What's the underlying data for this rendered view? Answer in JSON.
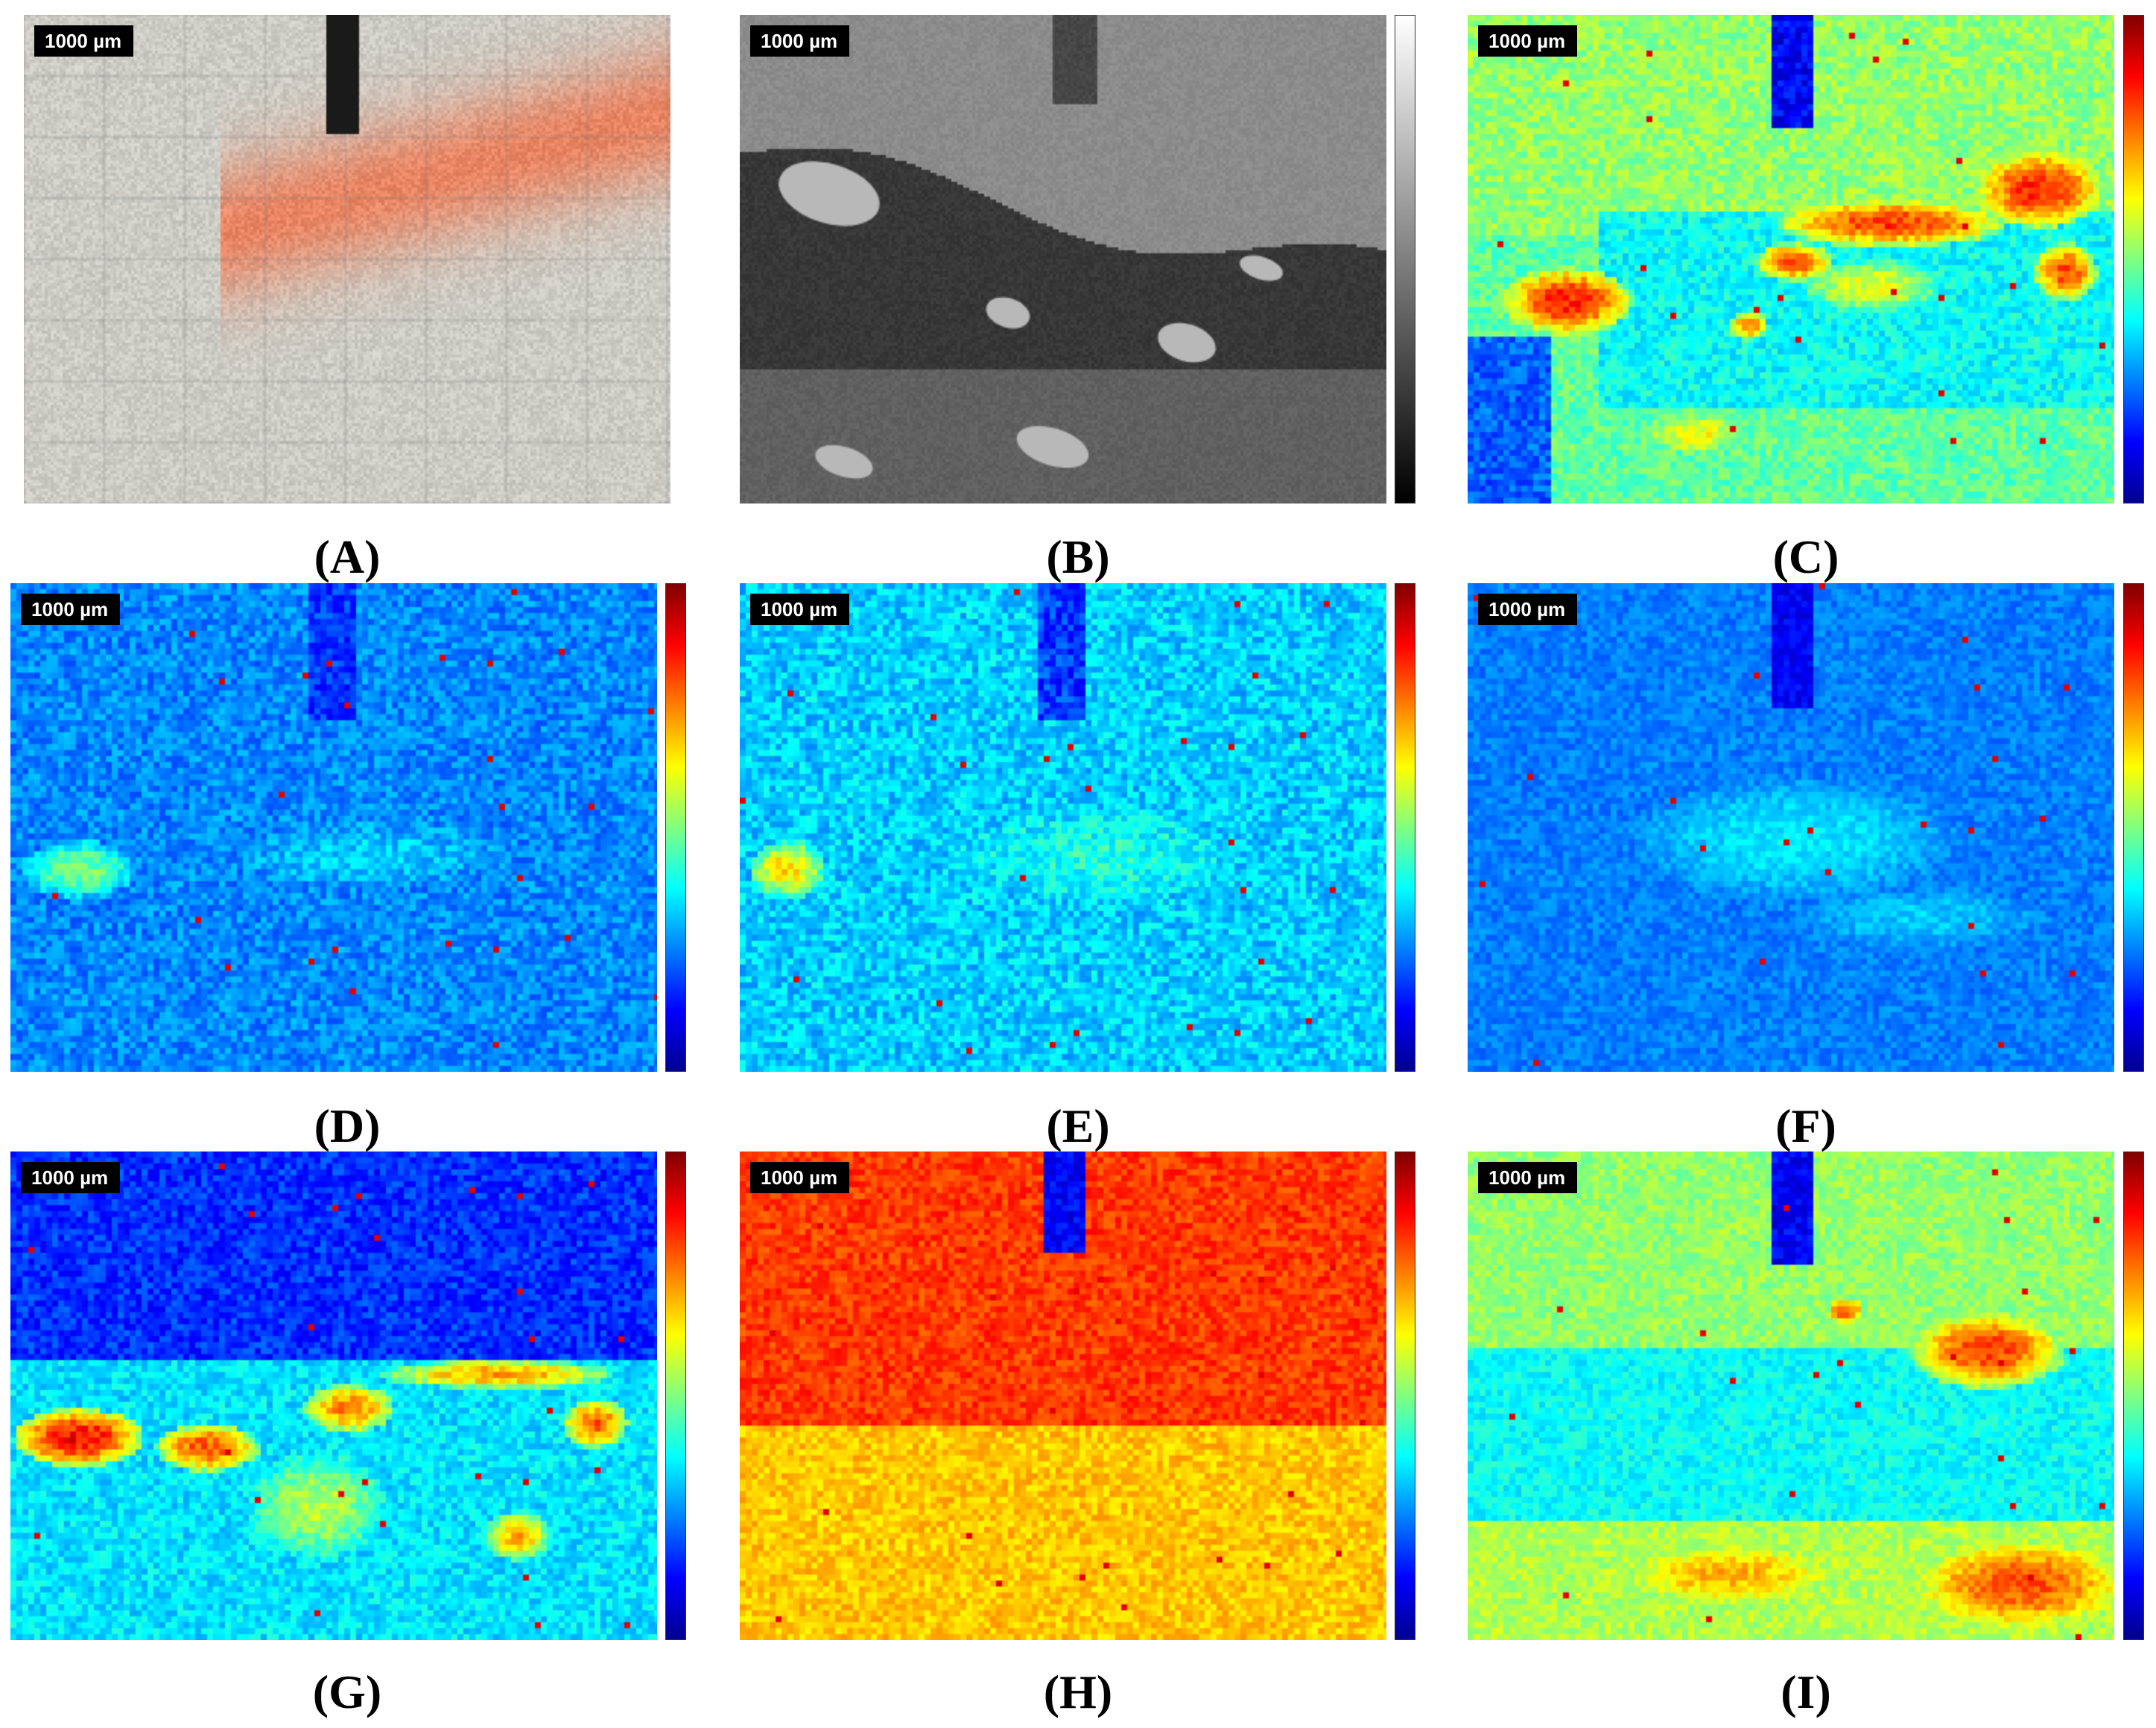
{
  "figure": {
    "scale_bar_label": "1000 µm",
    "colors": {
      "jet": [
        "#00008f",
        "#0000ff",
        "#0080ff",
        "#00ffff",
        "#80ff80",
        "#ffff00",
        "#ff8000",
        "#ff0000",
        "#800000"
      ],
      "gray": [
        "#000000",
        "#ffffff"
      ]
    },
    "panels": [
      {
        "id": "A",
        "caption": "(A)",
        "kind": "photo",
        "colorbar": "none"
      },
      {
        "id": "B",
        "caption": "(B)",
        "kind": "grayscale",
        "colorbar": "gray"
      },
      {
        "id": "C",
        "caption": "(C)",
        "kind": "heatmap",
        "colorbar": "jet"
      },
      {
        "id": "D",
        "caption": "(D)",
        "kind": "heatmap",
        "colorbar": "jet"
      },
      {
        "id": "E",
        "caption": "(E)",
        "kind": "heatmap",
        "colorbar": "jet"
      },
      {
        "id": "F",
        "caption": "(F)",
        "kind": "heatmap",
        "colorbar": "jet"
      },
      {
        "id": "G",
        "caption": "(G)",
        "kind": "heatmap",
        "colorbar": "jet"
      },
      {
        "id": "H",
        "caption": "(H)",
        "kind": "heatmap",
        "colorbar": "jet"
      },
      {
        "id": "I",
        "caption": "(I)",
        "kind": "heatmap",
        "colorbar": "jet"
      }
    ]
  }
}
